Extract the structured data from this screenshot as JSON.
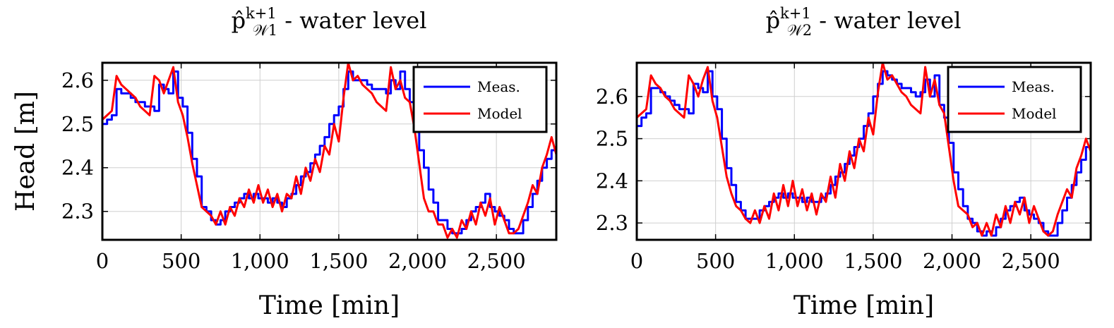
{
  "chart_data": [
    {
      "type": "line",
      "title": {
        "main": "p̂",
        "superscript": "k+1",
        "subscript": "𝒲1",
        "suffix": " - water level"
      },
      "xlabel": "Time [min]",
      "ylabel": "Head [m]",
      "xlim": [
        0,
        2880
      ],
      "ylim": [
        2.235,
        2.64
      ],
      "xticks": [
        0,
        500,
        1000,
        1500,
        2000,
        2500
      ],
      "xtick_labels": [
        "0",
        "500",
        "1,000",
        "1,500",
        "2,000",
        "2,500"
      ],
      "yticks": [
        2.3,
        2.4,
        2.5,
        2.6
      ],
      "ytick_labels": [
        "2.3",
        "2.4",
        "2.5",
        "2.6"
      ],
      "grid": true,
      "legend": "top-right",
      "series": [
        {
          "name": "Meas.",
          "color": "#0000ff",
          "x": [
            0,
            30,
            60,
            90,
            120,
            150,
            180,
            210,
            240,
            270,
            300,
            330,
            360,
            390,
            420,
            450,
            480,
            510,
            540,
            570,
            600,
            630,
            660,
            690,
            720,
            750,
            780,
            810,
            840,
            870,
            900,
            930,
            960,
            990,
            1020,
            1050,
            1080,
            1110,
            1140,
            1170,
            1200,
            1230,
            1260,
            1290,
            1320,
            1350,
            1380,
            1410,
            1440,
            1470,
            1500,
            1530,
            1560,
            1590,
            1620,
            1650,
            1680,
            1710,
            1740,
            1770,
            1800,
            1830,
            1860,
            1890,
            1920,
            1950,
            1980,
            2010,
            2040,
            2070,
            2100,
            2130,
            2160,
            2190,
            2220,
            2250,
            2280,
            2310,
            2340,
            2370,
            2400,
            2430,
            2460,
            2490,
            2520,
            2550,
            2580,
            2610,
            2640,
            2670,
            2700,
            2730,
            2760,
            2790,
            2820,
            2850,
            2880
          ],
          "y": [
            2.5,
            2.51,
            2.52,
            2.58,
            2.57,
            2.57,
            2.56,
            2.55,
            2.55,
            2.54,
            2.54,
            2.53,
            2.59,
            2.58,
            2.57,
            2.62,
            2.56,
            2.54,
            2.48,
            2.42,
            2.38,
            2.31,
            2.3,
            2.28,
            2.27,
            2.28,
            2.3,
            2.31,
            2.32,
            2.33,
            2.34,
            2.33,
            2.34,
            2.33,
            2.33,
            2.32,
            2.33,
            2.32,
            2.31,
            2.33,
            2.34,
            2.36,
            2.38,
            2.39,
            2.41,
            2.43,
            2.45,
            2.47,
            2.5,
            2.52,
            2.54,
            2.58,
            2.62,
            2.6,
            2.6,
            2.6,
            2.59,
            2.58,
            2.58,
            2.58,
            2.57,
            2.6,
            2.58,
            2.62,
            2.58,
            2.55,
            2.5,
            2.44,
            2.4,
            2.35,
            2.32,
            2.28,
            2.28,
            2.26,
            2.25,
            2.25,
            2.26,
            2.28,
            2.3,
            2.31,
            2.32,
            2.34,
            2.31,
            2.3,
            2.29,
            2.28,
            2.26,
            2.25,
            2.25,
            2.28,
            2.31,
            2.34,
            2.37,
            2.4,
            2.42,
            2.44,
            2.45
          ]
        },
        {
          "name": "Model",
          "color": "#ff0000",
          "x": [
            0,
            30,
            60,
            90,
            120,
            150,
            180,
            210,
            240,
            270,
            300,
            330,
            360,
            390,
            420,
            450,
            480,
            510,
            540,
            570,
            600,
            630,
            660,
            690,
            720,
            750,
            780,
            810,
            840,
            870,
            900,
            930,
            960,
            990,
            1020,
            1050,
            1080,
            1110,
            1140,
            1170,
            1200,
            1230,
            1260,
            1290,
            1320,
            1350,
            1380,
            1410,
            1440,
            1470,
            1500,
            1530,
            1560,
            1590,
            1620,
            1650,
            1680,
            1710,
            1740,
            1770,
            1800,
            1830,
            1860,
            1890,
            1920,
            1950,
            1980,
            2010,
            2040,
            2070,
            2100,
            2130,
            2160,
            2190,
            2220,
            2250,
            2280,
            2310,
            2340,
            2370,
            2400,
            2430,
            2460,
            2490,
            2520,
            2550,
            2580,
            2610,
            2640,
            2670,
            2700,
            2730,
            2760,
            2790,
            2820,
            2850,
            2880
          ],
          "y": [
            2.51,
            2.52,
            2.53,
            2.61,
            2.59,
            2.58,
            2.57,
            2.56,
            2.54,
            2.53,
            2.52,
            2.61,
            2.6,
            2.57,
            2.6,
            2.63,
            2.55,
            2.52,
            2.47,
            2.41,
            2.36,
            2.31,
            2.3,
            2.29,
            2.27,
            2.3,
            2.27,
            2.31,
            2.29,
            2.33,
            2.31,
            2.35,
            2.32,
            2.36,
            2.32,
            2.35,
            2.31,
            2.34,
            2.3,
            2.34,
            2.33,
            2.38,
            2.34,
            2.4,
            2.37,
            2.42,
            2.39,
            2.45,
            2.43,
            2.5,
            2.46,
            2.56,
            2.64,
            2.6,
            2.61,
            2.59,
            2.58,
            2.57,
            2.55,
            2.54,
            2.53,
            2.63,
            2.58,
            2.6,
            2.56,
            2.55,
            2.49,
            2.41,
            2.33,
            2.3,
            2.3,
            2.27,
            2.27,
            2.24,
            2.26,
            2.24,
            2.28,
            2.26,
            2.3,
            2.27,
            2.32,
            2.29,
            2.33,
            2.27,
            2.31,
            2.28,
            2.25,
            2.25,
            2.26,
            2.29,
            2.32,
            2.36,
            2.34,
            2.4,
            2.43,
            2.47,
            2.43
          ]
        }
      ]
    },
    {
      "type": "line",
      "title": {
        "main": "p̂",
        "superscript": "k+1",
        "subscript": "𝒲2",
        "suffix": " - water level"
      },
      "xlabel": "Time [min]",
      "ylabel": "",
      "xlim": [
        0,
        2880
      ],
      "ylim": [
        2.26,
        2.68
      ],
      "xticks": [
        0,
        500,
        1000,
        1500,
        2000,
        2500
      ],
      "xtick_labels": [
        "0",
        "500",
        "1,000",
        "1,500",
        "2,000",
        "2,500"
      ],
      "yticks": [
        2.3,
        2.4,
        2.5,
        2.6
      ],
      "ytick_labels": [
        "2.3",
        "2.4",
        "2.5",
        "2.6"
      ],
      "grid": true,
      "legend": "top-right",
      "series": [
        {
          "name": "Meas.",
          "color": "#0000ff",
          "x": [
            0,
            30,
            60,
            90,
            120,
            150,
            180,
            210,
            240,
            270,
            300,
            330,
            360,
            390,
            420,
            450,
            480,
            510,
            540,
            570,
            600,
            630,
            660,
            690,
            720,
            750,
            780,
            810,
            840,
            870,
            900,
            930,
            960,
            990,
            1020,
            1050,
            1080,
            1110,
            1140,
            1170,
            1200,
            1230,
            1260,
            1290,
            1320,
            1350,
            1380,
            1410,
            1440,
            1470,
            1500,
            1530,
            1560,
            1590,
            1620,
            1650,
            1680,
            1710,
            1740,
            1770,
            1800,
            1830,
            1860,
            1890,
            1920,
            1950,
            1980,
            2010,
            2040,
            2070,
            2100,
            2130,
            2160,
            2190,
            2220,
            2250,
            2280,
            2310,
            2340,
            2370,
            2400,
            2430,
            2460,
            2490,
            2520,
            2550,
            2580,
            2610,
            2640,
            2670,
            2700,
            2730,
            2760,
            2790,
            2820,
            2850,
            2880
          ],
          "y": [
            2.53,
            2.55,
            2.56,
            2.62,
            2.62,
            2.61,
            2.6,
            2.59,
            2.58,
            2.57,
            2.57,
            2.56,
            2.63,
            2.62,
            2.61,
            2.66,
            2.6,
            2.57,
            2.5,
            2.43,
            2.39,
            2.35,
            2.33,
            2.31,
            2.31,
            2.31,
            2.33,
            2.34,
            2.35,
            2.36,
            2.37,
            2.36,
            2.37,
            2.36,
            2.36,
            2.35,
            2.36,
            2.35,
            2.35,
            2.36,
            2.37,
            2.39,
            2.41,
            2.42,
            2.44,
            2.46,
            2.48,
            2.5,
            2.53,
            2.56,
            2.6,
            2.63,
            2.66,
            2.65,
            2.64,
            2.63,
            2.62,
            2.62,
            2.61,
            2.6,
            2.61,
            2.64,
            2.6,
            2.65,
            2.58,
            2.55,
            2.49,
            2.42,
            2.38,
            2.34,
            2.31,
            2.3,
            2.28,
            2.27,
            2.28,
            2.27,
            2.29,
            2.31,
            2.33,
            2.34,
            2.35,
            2.36,
            2.33,
            2.32,
            2.31,
            2.3,
            2.28,
            2.27,
            2.27,
            2.3,
            2.33,
            2.36,
            2.39,
            2.42,
            2.45,
            2.48,
            2.49
          ]
        },
        {
          "name": "Model",
          "color": "#ff0000",
          "x": [
            0,
            30,
            60,
            90,
            120,
            150,
            180,
            210,
            240,
            270,
            300,
            330,
            360,
            390,
            420,
            450,
            480,
            510,
            540,
            570,
            600,
            630,
            660,
            690,
            720,
            750,
            780,
            810,
            840,
            870,
            900,
            930,
            960,
            990,
            1020,
            1050,
            1080,
            1110,
            1140,
            1170,
            1200,
            1230,
            1260,
            1290,
            1320,
            1350,
            1380,
            1410,
            1440,
            1470,
            1500,
            1530,
            1560,
            1590,
            1620,
            1650,
            1680,
            1710,
            1740,
            1770,
            1800,
            1830,
            1860,
            1890,
            1920,
            1950,
            1980,
            2010,
            2040,
            2070,
            2100,
            2130,
            2160,
            2190,
            2220,
            2250,
            2280,
            2310,
            2340,
            2370,
            2400,
            2430,
            2460,
            2490,
            2520,
            2550,
            2580,
            2610,
            2640,
            2670,
            2700,
            2730,
            2760,
            2790,
            2820,
            2850,
            2880
          ],
          "y": [
            2.55,
            2.56,
            2.57,
            2.65,
            2.63,
            2.62,
            2.6,
            2.59,
            2.57,
            2.56,
            2.55,
            2.65,
            2.63,
            2.6,
            2.64,
            2.67,
            2.59,
            2.55,
            2.48,
            2.41,
            2.37,
            2.34,
            2.33,
            2.31,
            2.3,
            2.33,
            2.3,
            2.34,
            2.31,
            2.37,
            2.33,
            2.39,
            2.34,
            2.4,
            2.34,
            2.38,
            2.33,
            2.37,
            2.32,
            2.37,
            2.35,
            2.41,
            2.36,
            2.44,
            2.4,
            2.47,
            2.43,
            2.5,
            2.47,
            2.55,
            2.51,
            2.61,
            2.68,
            2.64,
            2.65,
            2.63,
            2.61,
            2.6,
            2.58,
            2.57,
            2.56,
            2.67,
            2.6,
            2.64,
            2.58,
            2.56,
            2.48,
            2.4,
            2.34,
            2.33,
            2.32,
            2.29,
            2.3,
            2.27,
            2.3,
            2.27,
            2.32,
            2.29,
            2.34,
            2.3,
            2.35,
            2.32,
            2.36,
            2.3,
            2.34,
            2.31,
            2.28,
            2.27,
            2.28,
            2.32,
            2.35,
            2.38,
            2.36,
            2.43,
            2.46,
            2.5,
            2.47
          ]
        }
      ]
    }
  ]
}
